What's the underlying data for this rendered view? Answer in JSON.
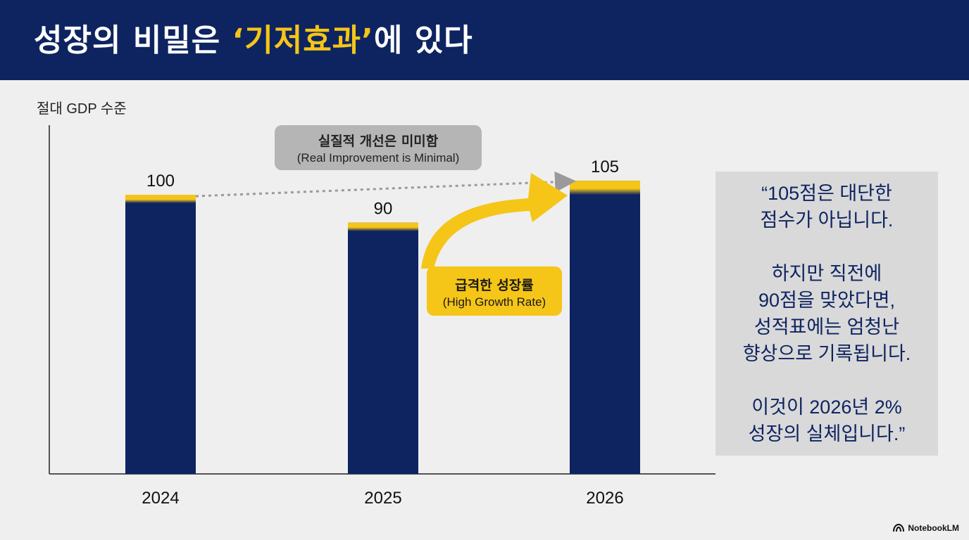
{
  "header": {
    "title_prefix": "성장의 비밀은 ",
    "title_highlight": "‘기저효과’",
    "title_suffix": "에 있다"
  },
  "colors": {
    "navy": "#0e2461",
    "gold": "#f5c518",
    "gray_badge": "#b5b5b5",
    "panel": "#d9d9d9"
  },
  "chart_data": {
    "type": "bar",
    "ylabel": "절대 GDP 수준",
    "categories": [
      "2024",
      "2025",
      "2026"
    ],
    "values": [
      100,
      90,
      105
    ],
    "value_labels": [
      "100",
      "90",
      "105"
    ],
    "ylim": [
      0,
      115
    ],
    "grid": false,
    "annotations": [
      {
        "ko": "실질적 개선은 미미함",
        "en": "(Real Improvement is Minimal)",
        "from": "2024",
        "to": "2026",
        "style": "dotted-arrow"
      },
      {
        "ko": "급격한 성장률",
        "en": "(High Growth Rate)",
        "from": "2025",
        "to": "2026",
        "style": "curved-arrow"
      }
    ]
  },
  "quote": {
    "para1": "“105점은 대단한\n점수가 아닙니다.",
    "para2": "하지만 직전에\n90점을 맞았다면,\n성적표에는 엄청난\n향상으로 기록됩니다.",
    "para3": "이것이 2026년 2%\n성장의 실체입니다.”"
  },
  "footer": {
    "brand": "NotebookLM",
    "icon": "notebooklm-logo-icon"
  }
}
